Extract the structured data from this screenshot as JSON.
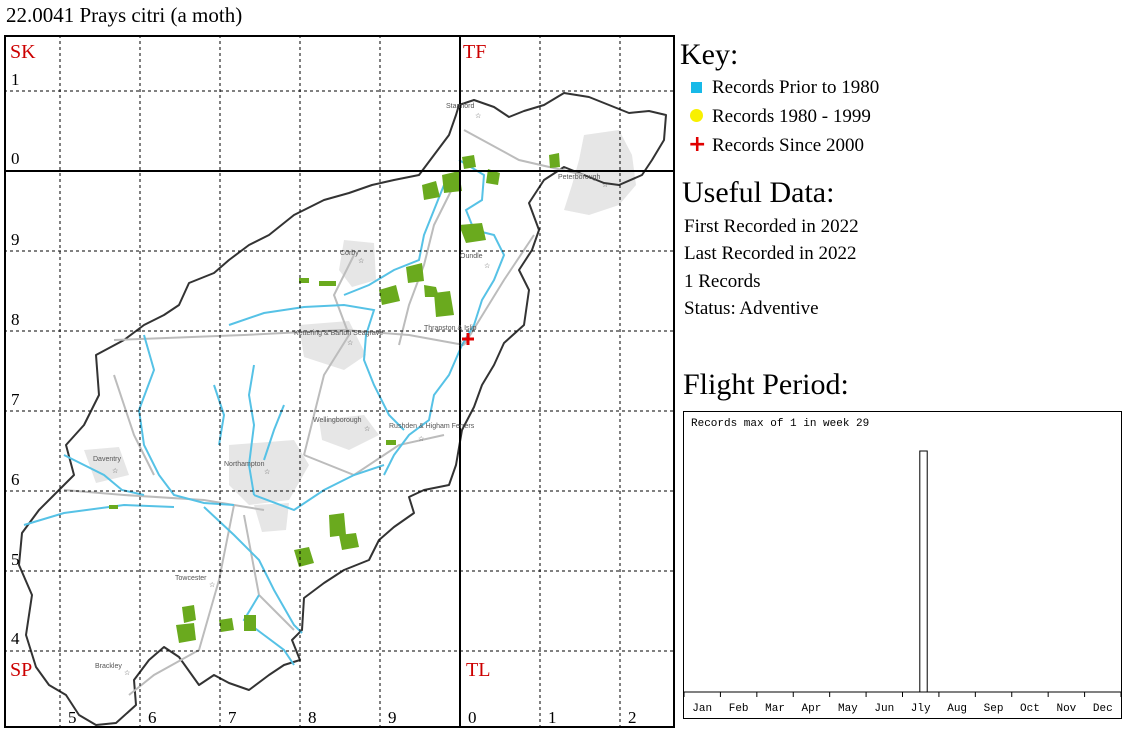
{
  "title": "22.0041 Prays citri (a moth)",
  "map": {
    "square_labels": [
      "SK",
      "TF",
      "SP",
      "TL"
    ],
    "row_labels": [
      "1",
      "0",
      "9",
      "8",
      "7",
      "6",
      "5",
      "4"
    ],
    "col_labels": [
      "5",
      "6",
      "7",
      "8",
      "9",
      "0",
      "1",
      "2"
    ],
    "towns": [
      "Stamford",
      "Peterborough",
      "Corby",
      "Oundle",
      "Kettering & Barton Seagrave",
      "Thrapston & Islip",
      "Wellingborough",
      "Rushden & Higham Ferrers",
      "Daventry",
      "Northampton",
      "Towcester",
      "Brackley"
    ],
    "records": [
      {
        "era": "Records Since 2000",
        "symbol": "red-plus"
      }
    ],
    "colors": {
      "boundary": "#333333",
      "river": "#56c2e6",
      "road": "#bcbcbc",
      "woodland": "#6aaa1e",
      "urban": "#e6e6e6",
      "grid_label": "#cc0000"
    }
  },
  "key": {
    "heading": "Key:",
    "items": [
      {
        "label": "Records Prior to 1980",
        "symbol": "square",
        "color": "#17b9e8"
      },
      {
        "label": "Records 1980 - 1999",
        "symbol": "circle",
        "color": "#f8f000"
      },
      {
        "label": "Records Since 2000",
        "symbol": "plus",
        "color": "#e00000"
      }
    ]
  },
  "useful": {
    "heading": "Useful Data:",
    "lines": [
      "First Recorded in 2022",
      "Last Recorded in 2022",
      "1 Records",
      "Status: Adventive"
    ]
  },
  "flight": {
    "heading": "Flight Period:",
    "note": "Records max of 1 in week 29",
    "months": [
      "Jan",
      "Feb",
      "Mar",
      "Apr",
      "May",
      "Jun",
      "Jly",
      "Aug",
      "Sep",
      "Oct",
      "Nov",
      "Dec"
    ]
  },
  "chart_data": {
    "type": "bar",
    "categories": [
      "Jan",
      "Feb",
      "Mar",
      "Apr",
      "May",
      "Jun",
      "Jly",
      "Aug",
      "Sep",
      "Oct",
      "Nov",
      "Dec"
    ],
    "weeks": 52,
    "bars": [
      {
        "week": 29,
        "value": 1
      }
    ],
    "max_value": 1,
    "title": "Records max of 1 in week 29",
    "xlabel": "",
    "ylabel": ""
  }
}
